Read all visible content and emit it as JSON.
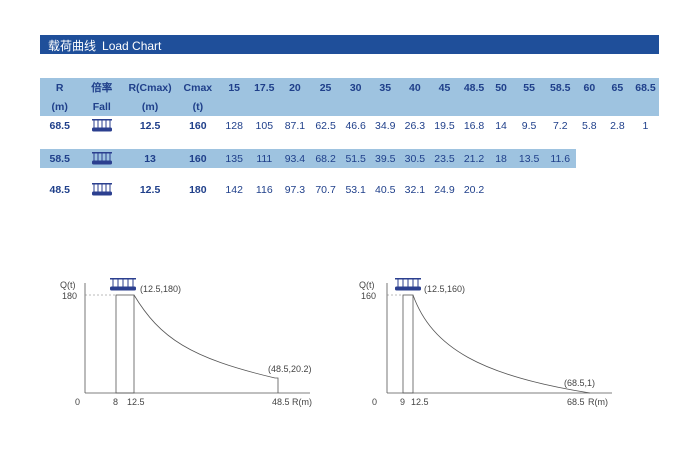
{
  "title": {
    "cn": "载荷曲线",
    "en": "Load Chart"
  },
  "table": {
    "header_row1": [
      "R",
      "倍率",
      "R(Cmax)",
      "Cmax",
      "15",
      "17.5",
      "20",
      "25",
      "30",
      "35",
      "40",
      "45",
      "48.5",
      "50",
      "55",
      "58.5",
      "60",
      "65",
      "68.5"
    ],
    "header_row2": [
      "(m)",
      "Fall",
      "(m)",
      "(t)"
    ],
    "rows": [
      {
        "r": "68.5",
        "r_cmax": "12.5",
        "cmax": "160",
        "values": [
          "128",
          "105",
          "87.1",
          "62.5",
          "46.6",
          "34.9",
          "26.3",
          "19.5",
          "16.8",
          "14",
          "9.5",
          "7.2",
          "5.8",
          "2.8",
          "1"
        ]
      },
      {
        "r": "58.5",
        "r_cmax": "13",
        "cmax": "160",
        "values": [
          "135",
          "111",
          "93.4",
          "68.2",
          "51.5",
          "39.5",
          "30.5",
          "23.5",
          "21.2",
          "18",
          "13.5",
          "11.6"
        ]
      },
      {
        "r": "48.5",
        "r_cmax": "12.5",
        "cmax": "180",
        "values": [
          "142",
          "116",
          "97.3",
          "70.7",
          "53.1",
          "40.5",
          "32.1",
          "24.9",
          "20.2"
        ]
      }
    ]
  },
  "charts": [
    {
      "y_label": "Q(t)",
      "y_value": "180",
      "peak_label": "(12.5,180)",
      "end_label": "(48.5,20.2)",
      "x_labels": [
        "0",
        "8",
        "12.5",
        "48.5"
      ],
      "x_unit": "R(m)"
    },
    {
      "y_label": "Q(t)",
      "y_value": "160",
      "peak_label": "(12.5,160)",
      "end_label": "(68.5,1)",
      "x_labels": [
        "0",
        "9",
        "12.5",
        "68.5"
      ],
      "x_unit": "R(m)"
    }
  ],
  "colors": {
    "title_bar": "#1f4f9a",
    "row_highlight": "#9ec3e0",
    "text": "#1f3f8a",
    "pulley": "#2b3f8f"
  }
}
